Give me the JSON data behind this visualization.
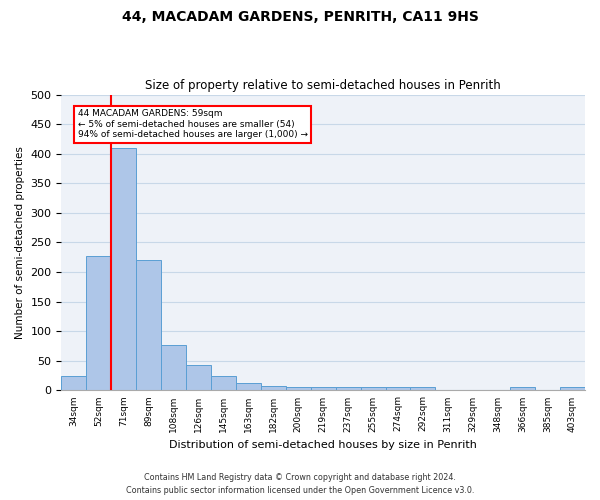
{
  "title_line1": "44, MACADAM GARDENS, PENRITH, CA11 9HS",
  "title_line2": "Size of property relative to semi-detached houses in Penrith",
  "xlabel": "Distribution of semi-detached houses by size in Penrith",
  "ylabel": "Number of semi-detached properties",
  "categories": [
    "34sqm",
    "52sqm",
    "71sqm",
    "89sqm",
    "108sqm",
    "126sqm",
    "145sqm",
    "163sqm",
    "182sqm",
    "200sqm",
    "219sqm",
    "237sqm",
    "255sqm",
    "274sqm",
    "292sqm",
    "311sqm",
    "329sqm",
    "348sqm",
    "366sqm",
    "385sqm",
    "403sqm"
  ],
  "values": [
    25,
    228,
    410,
    220,
    76,
    43,
    24,
    12,
    7,
    6,
    6,
    5,
    5,
    5,
    5,
    0,
    0,
    0,
    5,
    0,
    5
  ],
  "bar_color": "#aec6e8",
  "bar_edge_color": "#5a9fd4",
  "property_line_x": 1.5,
  "annotation_text_line1": "44 MACADAM GARDENS: 59sqm",
  "annotation_text_line2": "← 5% of semi-detached houses are smaller (54)",
  "annotation_text_line3": "94% of semi-detached houses are larger (1,000) →",
  "box_color": "white",
  "box_edge_color": "red",
  "vline_color": "red",
  "footer_line1": "Contains HM Land Registry data © Crown copyright and database right 2024.",
  "footer_line2": "Contains public sector information licensed under the Open Government Licence v3.0.",
  "ylim": [
    0,
    500
  ],
  "yticks": [
    0,
    50,
    100,
    150,
    200,
    250,
    300,
    350,
    400,
    450,
    500
  ],
  "grid_color": "#c8d8e8",
  "background_color": "#eef2f8"
}
